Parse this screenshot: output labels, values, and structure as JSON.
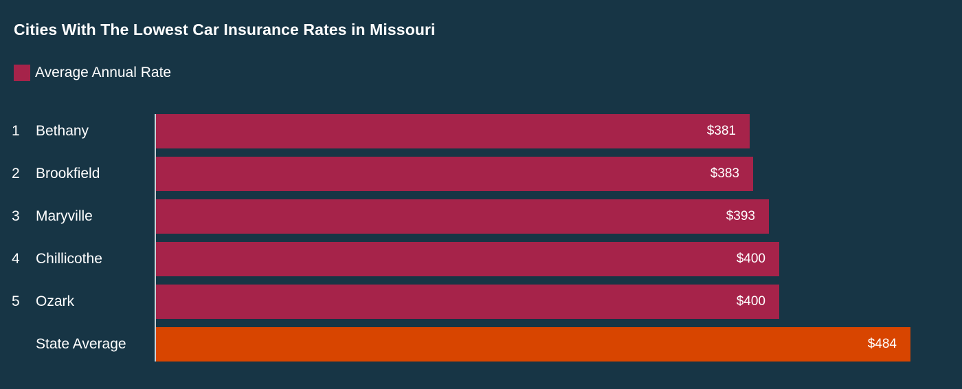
{
  "chart_data": {
    "type": "bar",
    "orientation": "horizontal",
    "title": "Cities With The Lowest Car Insurance Rates in Missouri",
    "legend": [
      {
        "label": "Average Annual Rate",
        "color": "#a6234a"
      }
    ],
    "legend_position": "top-left",
    "grid": false,
    "xlim": [
      0,
      500
    ],
    "categories": [
      {
        "rank": "1",
        "name": "Bethany",
        "value": 381,
        "label": "$381",
        "color": "#a6234a"
      },
      {
        "rank": "2",
        "name": "Brookfield",
        "value": 383,
        "label": "$383",
        "color": "#a6234a"
      },
      {
        "rank": "3",
        "name": "Maryville",
        "value": 393,
        "label": "$393",
        "color": "#a6234a"
      },
      {
        "rank": "4",
        "name": "Chillicothe",
        "value": 400,
        "label": "$400",
        "color": "#a6234a"
      },
      {
        "rank": "5",
        "name": "Ozark",
        "value": 400,
        "label": "$400",
        "color": "#a6234a"
      },
      {
        "rank": "",
        "name": "State Average",
        "value": 484,
        "label": "$484",
        "color": "#d84500"
      }
    ]
  },
  "colors": {
    "background": "#173545",
    "city_bar": "#a6234a",
    "state_average_bar": "#d84500",
    "text": "#ffffff"
  }
}
